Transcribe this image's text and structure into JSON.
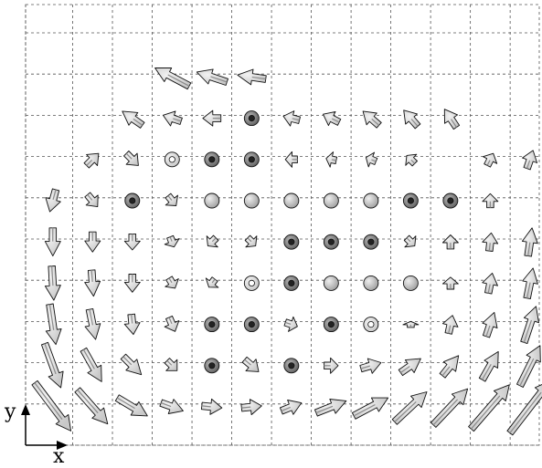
{
  "figure": {
    "axis_labels": {
      "x": "x",
      "y": "y"
    },
    "grid": true,
    "grid_style": "dashed",
    "colors": {
      "grid": "#555555",
      "arrow_body": "#c8c8c8",
      "arrow_light": "#f2f2f2",
      "arrow_dark": "#555555",
      "outline": "#111111"
    }
  },
  "chart_data": {
    "type": "vector-field",
    "grid_columns": 13,
    "grid_rows": 10,
    "vectors": [
      {
        "x": 1,
        "y": 1,
        "dx": 0.9,
        "dy": -1.2,
        "view": "side"
      },
      {
        "x": 2,
        "y": 1,
        "dx": 0.75,
        "dy": -0.85,
        "view": "side"
      },
      {
        "x": 3,
        "y": 1,
        "dx": 0.75,
        "dy": -0.45,
        "view": "side"
      },
      {
        "x": 4,
        "y": 1,
        "dx": 0.55,
        "dy": -0.2,
        "view": "side"
      },
      {
        "x": 5,
        "y": 1,
        "dx": 0.5,
        "dy": -0.05,
        "view": "side"
      },
      {
        "x": 6,
        "y": 1,
        "dx": 0.5,
        "dy": 0.05,
        "view": "side"
      },
      {
        "x": 7,
        "y": 1,
        "dx": 0.5,
        "dy": 0.2,
        "view": "side"
      },
      {
        "x": 8,
        "y": 1,
        "dx": 0.75,
        "dy": 0.3,
        "view": "side"
      },
      {
        "x": 9,
        "y": 1,
        "dx": 0.85,
        "dy": 0.45,
        "view": "side"
      },
      {
        "x": 10,
        "y": 1,
        "dx": 0.8,
        "dy": 0.75,
        "view": "side"
      },
      {
        "x": 11,
        "y": 1,
        "dx": 0.85,
        "dy": 0.9,
        "view": "side"
      },
      {
        "x": 12,
        "y": 1,
        "dx": 0.95,
        "dy": 1.1,
        "view": "side"
      },
      {
        "x": 13,
        "y": 1,
        "dx": 1.0,
        "dy": 1.3,
        "view": "side"
      },
      {
        "x": 1,
        "y": 2,
        "dx": 0.4,
        "dy": -1.1,
        "view": "side"
      },
      {
        "x": 2,
        "y": 2,
        "dx": 0.45,
        "dy": -0.8,
        "view": "side"
      },
      {
        "x": 3,
        "y": 2,
        "dx": 0.45,
        "dy": -0.45,
        "view": "side"
      },
      {
        "x": 4,
        "y": 2,
        "dx": 0.25,
        "dy": -0.25,
        "view": "side"
      },
      {
        "x": 5,
        "y": 2,
        "dx": 0.2,
        "dy": 0.0,
        "view": "head-on",
        "shade": "dark"
      },
      {
        "x": 6,
        "y": 2,
        "dx": 0.35,
        "dy": -0.3,
        "view": "side"
      },
      {
        "x": 7,
        "y": 2,
        "dx": 0.25,
        "dy": 0.0,
        "view": "head-on",
        "shade": "dark"
      },
      {
        "x": 8,
        "y": 2,
        "dx": 0.35,
        "dy": 0.0,
        "view": "side"
      },
      {
        "x": 9,
        "y": 2,
        "dx": 0.5,
        "dy": 0.15,
        "view": "side"
      },
      {
        "x": 10,
        "y": 2,
        "dx": 0.5,
        "dy": 0.35,
        "view": "side"
      },
      {
        "x": 11,
        "y": 2,
        "dx": 0.4,
        "dy": 0.5,
        "view": "side"
      },
      {
        "x": 12,
        "y": 2,
        "dx": 0.4,
        "dy": 0.7,
        "view": "side"
      },
      {
        "x": 13,
        "y": 2,
        "dx": 0.5,
        "dy": 1.0,
        "view": "side"
      },
      {
        "x": 1,
        "y": 3,
        "dx": 0.15,
        "dy": -1.0,
        "view": "side"
      },
      {
        "x": 2,
        "y": 3,
        "dx": 0.15,
        "dy": -0.75,
        "view": "side"
      },
      {
        "x": 3,
        "y": 3,
        "dx": 0.05,
        "dy": -0.5,
        "view": "side"
      },
      {
        "x": 4,
        "y": 3,
        "dx": 0.15,
        "dy": -0.35,
        "view": "side"
      },
      {
        "x": 5,
        "y": 3,
        "dx": 0.0,
        "dy": 0.0,
        "view": "head-on",
        "shade": "dark"
      },
      {
        "x": 6,
        "y": 3,
        "dx": 0.0,
        "dy": 0.0,
        "view": "head-on",
        "shade": "dark"
      },
      {
        "x": 7,
        "y": 3,
        "dx": 0.3,
        "dy": -0.1,
        "view": "side"
      },
      {
        "x": 8,
        "y": 3,
        "dx": 0.0,
        "dy": 0.0,
        "view": "head-on",
        "shade": "dark"
      },
      {
        "x": 9,
        "y": 3,
        "dx": 0.0,
        "dy": 0.0,
        "view": "head-on",
        "shade": "light"
      },
      {
        "x": 10,
        "y": 3,
        "dx": 0.0,
        "dy": 0.15,
        "view": "side"
      },
      {
        "x": 11,
        "y": 3,
        "dx": 0.1,
        "dy": 0.45,
        "view": "side"
      },
      {
        "x": 12,
        "y": 3,
        "dx": 0.2,
        "dy": 0.6,
        "view": "side"
      },
      {
        "x": 13,
        "y": 3,
        "dx": 0.3,
        "dy": 0.9,
        "view": "side"
      },
      {
        "x": 1,
        "y": 4,
        "dx": 0.05,
        "dy": -0.85,
        "view": "side"
      },
      {
        "x": 2,
        "y": 4,
        "dx": 0.05,
        "dy": -0.65,
        "view": "side"
      },
      {
        "x": 3,
        "y": 4,
        "dx": 0.0,
        "dy": -0.45,
        "view": "side"
      },
      {
        "x": 4,
        "y": 4,
        "dx": 0.15,
        "dy": -0.25,
        "view": "side"
      },
      {
        "x": 5,
        "y": 4,
        "dx": -0.15,
        "dy": -0.2,
        "view": "side"
      },
      {
        "x": 6,
        "y": 4,
        "dx": 0.0,
        "dy": 0.0,
        "view": "head-on",
        "shade": "light"
      },
      {
        "x": 7,
        "y": 4,
        "dx": 0.0,
        "dy": 0.0,
        "view": "head-on",
        "shade": "dark"
      },
      {
        "x": 8,
        "y": 4,
        "dx": 0.0,
        "dy": 0.0,
        "view": "head-on",
        "shade": "mid"
      },
      {
        "x": 9,
        "y": 4,
        "dx": 0.0,
        "dy": 0.0,
        "view": "head-on",
        "shade": "mid"
      },
      {
        "x": 10,
        "y": 4,
        "dx": 0.0,
        "dy": 0.0,
        "view": "head-on",
        "shade": "mid"
      },
      {
        "x": 11,
        "y": 4,
        "dx": 0.0,
        "dy": 0.3,
        "view": "side"
      },
      {
        "x": 12,
        "y": 4,
        "dx": 0.1,
        "dy": 0.5,
        "view": "side"
      },
      {
        "x": 13,
        "y": 4,
        "dx": 0.15,
        "dy": 0.75,
        "view": "side"
      },
      {
        "x": 1,
        "y": 5,
        "dx": 0.0,
        "dy": -0.7,
        "view": "side"
      },
      {
        "x": 2,
        "y": 5,
        "dx": 0.0,
        "dy": -0.5,
        "view": "side"
      },
      {
        "x": 3,
        "y": 5,
        "dx": 0.0,
        "dy": -0.4,
        "view": "side"
      },
      {
        "x": 4,
        "y": 5,
        "dx": 0.1,
        "dy": -0.25,
        "view": "side"
      },
      {
        "x": 5,
        "y": 5,
        "dx": -0.2,
        "dy": -0.2,
        "view": "side"
      },
      {
        "x": 6,
        "y": 5,
        "dx": 0.2,
        "dy": -0.2,
        "view": "side"
      },
      {
        "x": 7,
        "y": 5,
        "dx": 0.0,
        "dy": 0.0,
        "view": "head-on",
        "shade": "dark"
      },
      {
        "x": 8,
        "y": 5,
        "dx": 0.0,
        "dy": 0.0,
        "view": "head-on",
        "shade": "dark"
      },
      {
        "x": 9,
        "y": 5,
        "dx": 0.0,
        "dy": 0.0,
        "view": "head-on",
        "shade": "dark"
      },
      {
        "x": 10,
        "y": 5,
        "dx": 0.2,
        "dy": -0.2,
        "view": "side"
      },
      {
        "x": 11,
        "y": 5,
        "dx": 0.0,
        "dy": 0.35,
        "view": "side"
      },
      {
        "x": 12,
        "y": 5,
        "dx": 0.05,
        "dy": 0.45,
        "view": "side"
      },
      {
        "x": 13,
        "y": 5,
        "dx": 0.1,
        "dy": 0.7,
        "view": "side"
      },
      {
        "x": 1,
        "y": 6,
        "dx": -0.15,
        "dy": -0.55,
        "view": "side"
      },
      {
        "x": 2,
        "y": 6,
        "dx": 0.25,
        "dy": -0.3,
        "view": "side"
      },
      {
        "x": 3,
        "y": 6,
        "dx": 0.0,
        "dy": 0.0,
        "view": "head-on",
        "shade": "dark"
      },
      {
        "x": 4,
        "y": 6,
        "dx": 0.2,
        "dy": -0.25,
        "view": "side"
      },
      {
        "x": 5,
        "y": 6,
        "dx": 0.0,
        "dy": 0.0,
        "view": "head-on",
        "shade": "mid"
      },
      {
        "x": 6,
        "y": 6,
        "dx": 0.0,
        "dy": 0.0,
        "view": "head-on",
        "shade": "mid"
      },
      {
        "x": 7,
        "y": 6,
        "dx": 0.0,
        "dy": 0.0,
        "view": "head-on",
        "shade": "mid"
      },
      {
        "x": 8,
        "y": 6,
        "dx": 0.0,
        "dy": 0.0,
        "view": "head-on",
        "shade": "mid"
      },
      {
        "x": 9,
        "y": 6,
        "dx": 0.0,
        "dy": 0.0,
        "view": "head-on",
        "shade": "mid"
      },
      {
        "x": 10,
        "y": 6,
        "dx": 0.0,
        "dy": 0.0,
        "view": "head-on",
        "shade": "dark"
      },
      {
        "x": 11,
        "y": 6,
        "dx": 0.0,
        "dy": 0.0,
        "view": "head-on",
        "shade": "dark"
      },
      {
        "x": 12,
        "y": 6,
        "dx": 0.0,
        "dy": 0.35,
        "view": "side"
      },
      {
        "x": 13,
        "y": 6,
        "dx": 0.0,
        "dy": 0.0,
        "view": "blank"
      },
      {
        "x": 1,
        "y": 7,
        "dx": 0.0,
        "dy": 0.0,
        "view": "blank"
      },
      {
        "x": 2,
        "y": 7,
        "dx": 0.3,
        "dy": 0.3,
        "view": "side"
      },
      {
        "x": 3,
        "y": 7,
        "dx": 0.3,
        "dy": -0.3,
        "view": "side"
      },
      {
        "x": 4,
        "y": 7,
        "dx": 0.0,
        "dy": 0.0,
        "view": "head-on",
        "shade": "light"
      },
      {
        "x": 5,
        "y": 7,
        "dx": 0.0,
        "dy": 0.0,
        "view": "head-on",
        "shade": "dark"
      },
      {
        "x": 6,
        "y": 7,
        "dx": 0.0,
        "dy": 0.0,
        "view": "head-on",
        "shade": "dark"
      },
      {
        "x": 7,
        "y": 7,
        "dx": -0.3,
        "dy": 0.0,
        "view": "side"
      },
      {
        "x": 8,
        "y": 7,
        "dx": -0.25,
        "dy": 0.05,
        "view": "side"
      },
      {
        "x": 9,
        "y": 7,
        "dx": -0.25,
        "dy": 0.1,
        "view": "side"
      },
      {
        "x": 10,
        "y": 7,
        "dx": -0.2,
        "dy": 0.2,
        "view": "side"
      },
      {
        "x": 11,
        "y": 7,
        "dx": 0.0,
        "dy": 0.0,
        "view": "blank"
      },
      {
        "x": 12,
        "y": 7,
        "dx": 0.15,
        "dy": 0.3,
        "view": "side"
      },
      {
        "x": 13,
        "y": 7,
        "dx": 0.15,
        "dy": 0.45,
        "view": "side"
      },
      {
        "x": 1,
        "y": 8,
        "dx": 0.0,
        "dy": 0.0,
        "view": "blank"
      },
      {
        "x": 2,
        "y": 8,
        "dx": 0.0,
        "dy": 0.0,
        "view": "blank"
      },
      {
        "x": 3,
        "y": 8,
        "dx": -0.5,
        "dy": 0.35,
        "view": "side"
      },
      {
        "x": 4,
        "y": 8,
        "dx": -0.45,
        "dy": 0.15,
        "view": "side"
      },
      {
        "x": 5,
        "y": 8,
        "dx": -0.45,
        "dy": 0.0,
        "view": "side"
      },
      {
        "x": 6,
        "y": 8,
        "dx": -0.2,
        "dy": 0.0,
        "view": "head-on",
        "shade": "dark"
      },
      {
        "x": 7,
        "y": 8,
        "dx": -0.4,
        "dy": 0.1,
        "view": "side"
      },
      {
        "x": 8,
        "y": 8,
        "dx": -0.4,
        "dy": 0.2,
        "view": "side"
      },
      {
        "x": 9,
        "y": 8,
        "dx": -0.4,
        "dy": 0.35,
        "view": "side"
      },
      {
        "x": 10,
        "y": 8,
        "dx": -0.35,
        "dy": 0.4,
        "view": "side"
      },
      {
        "x": 11,
        "y": 8,
        "dx": -0.3,
        "dy": 0.45,
        "view": "side"
      },
      {
        "x": 12,
        "y": 8,
        "dx": 0.0,
        "dy": 0.0,
        "view": "blank"
      },
      {
        "x": 13,
        "y": 8,
        "dx": 0.0,
        "dy": 0.0,
        "view": "blank"
      },
      {
        "x": 1,
        "y": 9,
        "dx": 0.0,
        "dy": 0.0,
        "view": "blank"
      },
      {
        "x": 2,
        "y": 9,
        "dx": 0.0,
        "dy": 0.0,
        "view": "blank"
      },
      {
        "x": 3,
        "y": 9,
        "dx": 0.0,
        "dy": 0.0,
        "view": "blank"
      },
      {
        "x": 4,
        "y": 9,
        "dx": -0.85,
        "dy": 0.45,
        "view": "side"
      },
      {
        "x": 5,
        "y": 9,
        "dx": -0.75,
        "dy": 0.25,
        "view": "side"
      },
      {
        "x": 6,
        "y": 9,
        "dx": -0.7,
        "dy": 0.1,
        "view": "side"
      },
      {
        "x": 7,
        "y": 9,
        "dx": 0.0,
        "dy": 0.0,
        "view": "blank"
      },
      {
        "x": 8,
        "y": 9,
        "dx": 0.0,
        "dy": 0.0,
        "view": "blank"
      },
      {
        "x": 9,
        "y": 9,
        "dx": 0.0,
        "dy": 0.0,
        "view": "blank"
      },
      {
        "x": 10,
        "y": 9,
        "dx": 0.0,
        "dy": 0.0,
        "view": "blank"
      },
      {
        "x": 11,
        "y": 9,
        "dx": 0.0,
        "dy": 0.0,
        "view": "blank"
      },
      {
        "x": 12,
        "y": 9,
        "dx": 0.0,
        "dy": 0.0,
        "view": "blank"
      },
      {
        "x": 13,
        "y": 9,
        "dx": 0.0,
        "dy": 0.0,
        "view": "blank"
      }
    ]
  }
}
